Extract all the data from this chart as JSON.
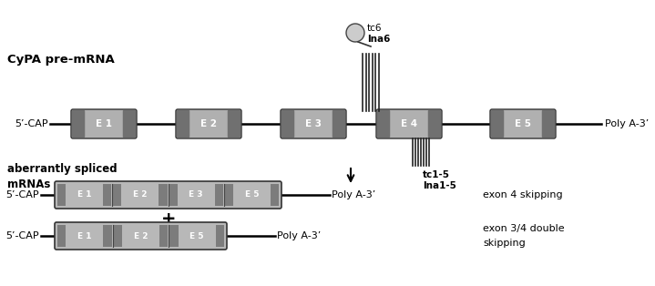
{
  "bg_color": "#ffffff",
  "title_text": "CyPA pre-mRNA",
  "label_5cap": "5’-CAP",
  "label_polyA": "Poly A-3’",
  "exon_labels_row1": [
    "E 1",
    "E 2",
    "E 3",
    "E 4",
    "E 5"
  ],
  "exon_color_light": "#cccccc",
  "exon_color_dark": "#555555",
  "exon_edge_color": "#333333",
  "line_color": "#111111",
  "tc6_label": "tc6",
  "lna6_label": "lna6",
  "tc15_label": "tc1-5",
  "lna15_label": "lna1-5",
  "aberrant_title_line1": "aberrantly spliced",
  "aberrant_title_line2": "mRNAs",
  "row2_exons": [
    "E 1",
    "E 2",
    "E 3",
    "E 5"
  ],
  "row2_label": "exon 4 skipping",
  "row3_exons": [
    "E 1",
    "E 2",
    "E 5"
  ],
  "row3_label_line1": "exon 3/4 double",
  "row3_label_line2": "skipping",
  "plus_symbol": "+",
  "fig_w": 7.19,
  "fig_h": 3.14,
  "dpi": 100
}
